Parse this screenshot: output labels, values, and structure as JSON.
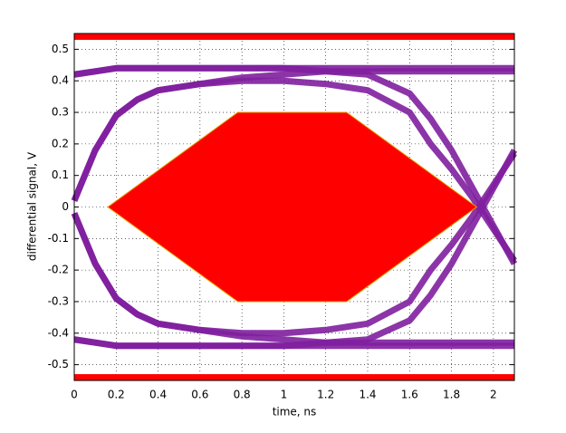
{
  "chart_data": {
    "type": "line",
    "xlabel": "time, ns",
    "ylabel": "differential signal, V",
    "xlim": [
      0,
      2.1
    ],
    "ylim": [
      -0.55,
      0.55
    ],
    "xticks": [
      0,
      0.2,
      0.4,
      0.6,
      0.8,
      1,
      1.2,
      1.4,
      1.6,
      1.8,
      2
    ],
    "yticks": [
      -0.5,
      -0.4,
      -0.3,
      -0.2,
      -0.1,
      0,
      0.1,
      0.2,
      0.3,
      0.4,
      0.5
    ],
    "grid": true,
    "x": [
      0,
      0.1,
      0.2,
      0.3,
      0.4,
      0.6,
      0.8,
      1.0,
      1.2,
      1.4,
      1.6,
      1.7,
      1.8,
      1.9,
      2.0,
      2.1
    ],
    "series": [
      {
        "color": "#7f1f9f",
        "values": [
          0.42,
          0.43,
          0.44,
          0.44,
          0.44,
          0.44,
          0.44,
          0.44,
          0.44,
          0.44,
          0.44,
          0.44,
          0.44,
          0.44,
          0.44,
          0.44
        ]
      },
      {
        "color": "#7f1f9f",
        "values": [
          -0.42,
          -0.43,
          -0.44,
          -0.44,
          -0.44,
          -0.44,
          -0.44,
          -0.44,
          -0.44,
          -0.44,
          -0.44,
          -0.44,
          -0.44,
          -0.44,
          -0.44,
          -0.44
        ]
      },
      {
        "color": "#7f1f9f",
        "values": [
          0.02,
          0.18,
          0.29,
          0.34,
          0.37,
          0.39,
          0.4,
          0.4,
          0.39,
          0.37,
          0.3,
          0.2,
          0.12,
          0.03,
          -0.07,
          -0.17
        ]
      },
      {
        "color": "#7f1f9f",
        "values": [
          -0.02,
          -0.18,
          -0.29,
          -0.34,
          -0.37,
          -0.39,
          -0.4,
          -0.4,
          -0.39,
          -0.37,
          -0.3,
          -0.2,
          -0.12,
          -0.03,
          0.07,
          0.17
        ]
      },
      {
        "color": "#7f1f9f",
        "values": [
          0.02,
          0.18,
          0.29,
          0.34,
          0.37,
          0.39,
          0.41,
          0.42,
          0.43,
          0.43,
          0.43,
          0.43,
          0.43,
          0.43,
          0.43,
          0.43
        ]
      },
      {
        "color": "#7f1f9f",
        "values": [
          -0.02,
          -0.18,
          -0.29,
          -0.34,
          -0.37,
          -0.39,
          -0.41,
          -0.42,
          -0.43,
          -0.43,
          -0.43,
          -0.43,
          -0.43,
          -0.43,
          -0.43,
          -0.43
        ]
      },
      {
        "color": "#7f1f9f",
        "values": [
          0.42,
          0.43,
          0.44,
          0.44,
          0.44,
          0.44,
          0.44,
          0.44,
          0.43,
          0.42,
          0.36,
          0.28,
          0.18,
          0.06,
          -0.06,
          -0.18
        ]
      },
      {
        "color": "#7f1f9f",
        "values": [
          -0.42,
          -0.43,
          -0.44,
          -0.44,
          -0.44,
          -0.44,
          -0.44,
          -0.44,
          -0.43,
          -0.42,
          -0.36,
          -0.28,
          -0.18,
          -0.06,
          0.06,
          0.18
        ]
      }
    ],
    "mask": {
      "color": "#ff0000",
      "edge": "#e8a000",
      "x": [
        0.16,
        0.78,
        1.3,
        1.92,
        1.3,
        0.78
      ],
      "y": [
        0,
        0.3,
        0.3,
        0,
        -0.3,
        -0.3
      ]
    },
    "mask_bands": [
      [
        0.53,
        0.55
      ],
      [
        -0.55,
        -0.53
      ]
    ]
  }
}
